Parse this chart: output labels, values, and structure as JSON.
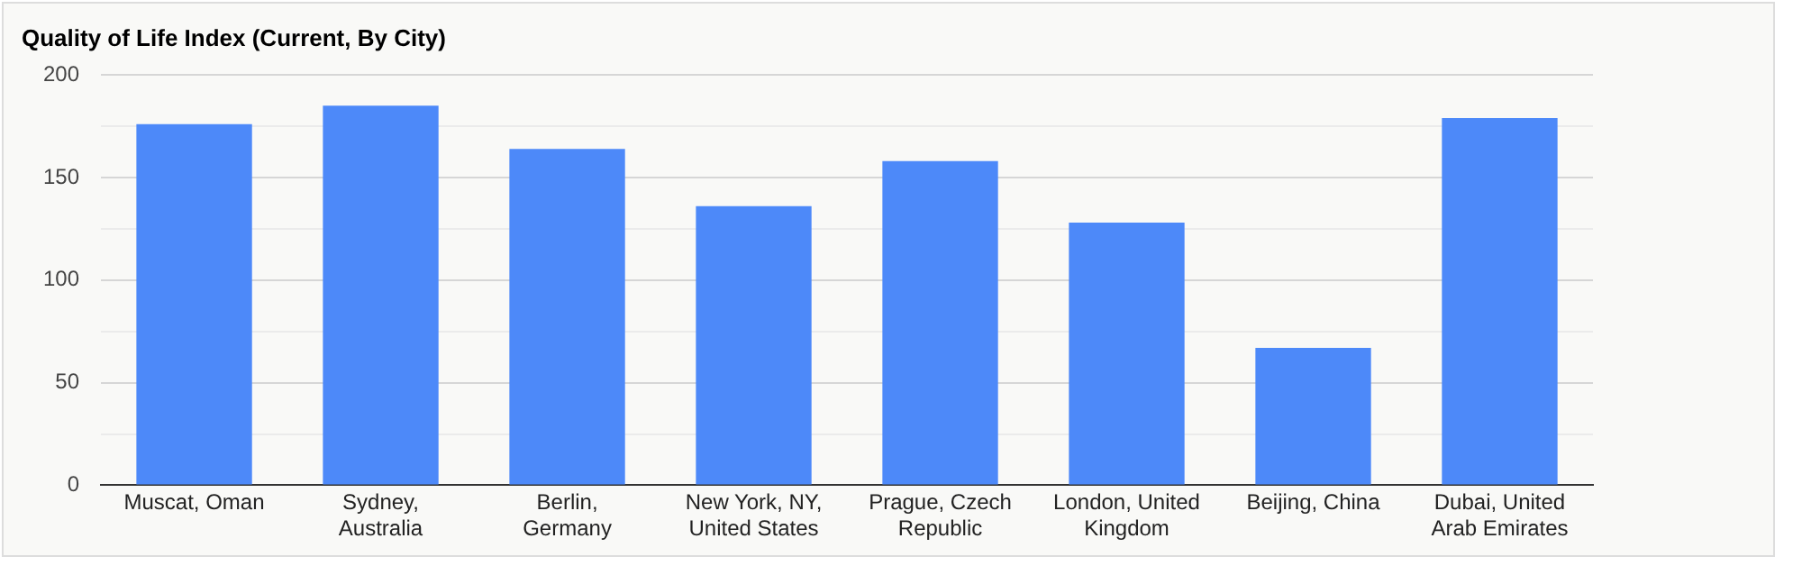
{
  "chart_data": {
    "type": "bar",
    "title": "Quality of Life Index (Current, By City)",
    "categories": [
      "Muscat, Oman",
      "Sydney, Australia",
      "Berlin, Germany",
      "New York, NY, United States",
      "Prague, Czech Republic",
      "London, United Kingdom",
      "Beijing, China",
      "Dubai, United Arab Emirates"
    ],
    "values": [
      176,
      185,
      164,
      136,
      158,
      128,
      67,
      179
    ],
    "color": "#4d89f9",
    "ylim": [
      0,
      200
    ],
    "yticks": [
      0,
      {
        "value": 25,
        "label": null
      },
      50,
      {
        "value": 75,
        "label": null
      },
      100,
      {
        "value": 125,
        "label": null
      },
      150,
      {
        "value": 175,
        "label": null
      },
      200
    ],
    "grid": true,
    "legend": false
  }
}
